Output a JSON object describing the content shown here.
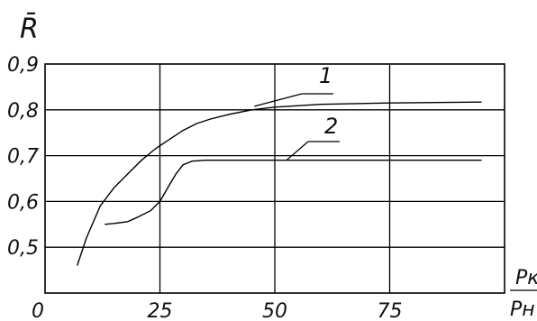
{
  "chart_data": {
    "type": "line",
    "ylabel": "R̄",
    "xlabel_num": "Pк",
    "xlabel_den": "Pн",
    "xlim": [
      0,
      100
    ],
    "ylim": [
      0.4,
      0.9
    ],
    "x_ticks": [
      "0",
      "25",
      "50",
      "75"
    ],
    "y_ticks": [
      "0,9",
      "0,8",
      "0,7",
      "0,6",
      "0,5"
    ],
    "grid": true,
    "series": [
      {
        "name": "1",
        "x": [
          7,
          9,
          12,
          15,
          18,
          21,
          24,
          27,
          30,
          33,
          36,
          40,
          45,
          50,
          60,
          75,
          95
        ],
        "y": [
          0.46,
          0.52,
          0.59,
          0.63,
          0.66,
          0.69,
          0.715,
          0.735,
          0.755,
          0.77,
          0.78,
          0.79,
          0.8,
          0.806,
          0.812,
          0.815,
          0.817
        ]
      },
      {
        "name": "2",
        "x": [
          13,
          15,
          18,
          20,
          23,
          25,
          27,
          28.5,
          30,
          32,
          35,
          40,
          50,
          75,
          95
        ],
        "y": [
          0.55,
          0.552,
          0.556,
          0.565,
          0.58,
          0.6,
          0.635,
          0.66,
          0.68,
          0.688,
          0.69,
          0.69,
          0.69,
          0.69,
          0.69
        ]
      }
    ]
  }
}
